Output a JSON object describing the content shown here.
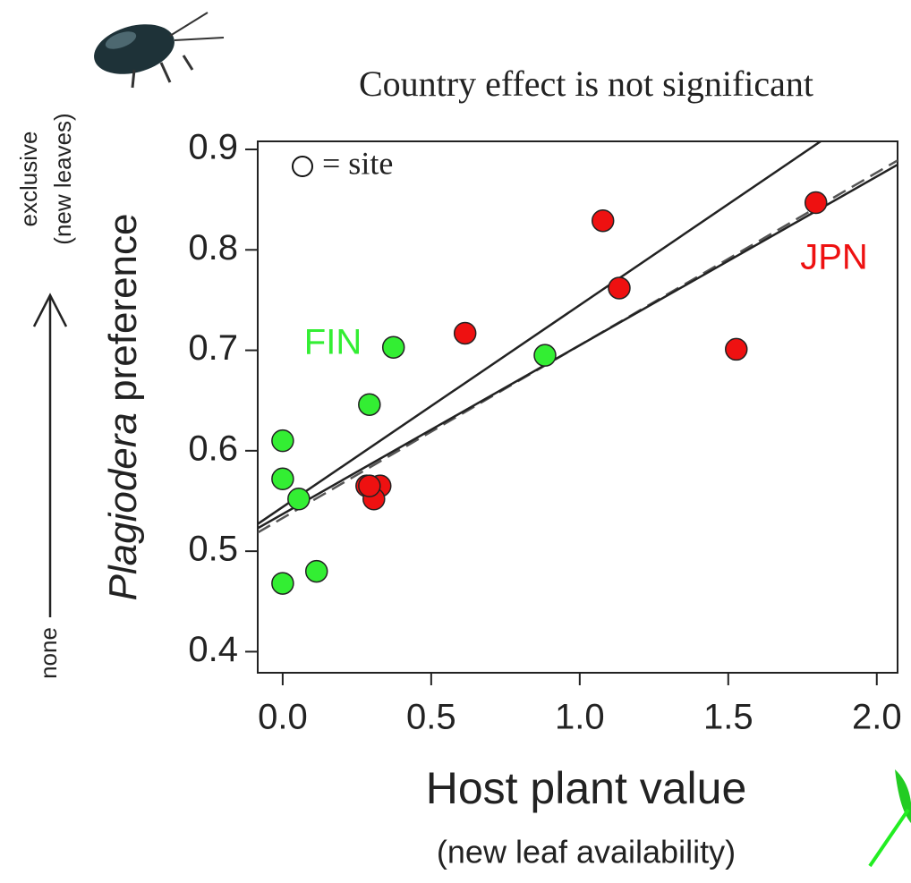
{
  "chart_data": {
    "type": "scatter",
    "title": "Country effect is not significant",
    "legend_text": "= site",
    "xlabel": "Host plant value",
    "xlabel_sub": "(new leaf availability)",
    "ylabel_italic": "Plagiodera",
    "ylabel": "preference",
    "side_top": "exclusive",
    "side_top_sub": "(new leaves)",
    "side_bottom": "none",
    "xlim": [
      -0.084,
      2.07
    ],
    "ylim": [
      0.379,
      0.908
    ],
    "xticks": [
      {
        "value": 0,
        "label": "0.0"
      },
      0.5,
      {
        "value": 1,
        "label": "1.0"
      },
      1.5,
      {
        "value": 2,
        "label": "2.0"
      }
    ],
    "yticks": [
      0.4,
      0.5,
      0.6,
      0.7,
      0.8,
      0.9
    ],
    "series": [
      {
        "name": "FIN",
        "color": "#33ee33",
        "x": [
          0,
          0,
          0.054,
          0,
          0.114,
          0.292,
          0.373,
          0.883
        ],
        "values": [
          0.61,
          0.572,
          0.552,
          0.468,
          0.48,
          0.646,
          0.703,
          0.695
        ]
      },
      {
        "name": "JPN",
        "color": "#ee1111",
        "x": [
          1.078,
          1.133,
          0.614,
          1.527,
          1.795,
          0.283,
          0.328,
          0.307,
          0.292
        ],
        "values": [
          0.829,
          0.762,
          0.717,
          0.701,
          0.847,
          0.565,
          0.565,
          0.552,
          0.565
        ]
      }
    ],
    "lines": [
      {
        "intercept": 0.544,
        "slope": 0.201,
        "dashed": false,
        "color": "#222222"
      },
      {
        "intercept": 0.533,
        "slope": 0.172,
        "dashed": true,
        "color": "#555555"
      },
      {
        "intercept": 0.537,
        "slope": 0.168,
        "dashed": false,
        "color": "#222222"
      }
    ]
  }
}
